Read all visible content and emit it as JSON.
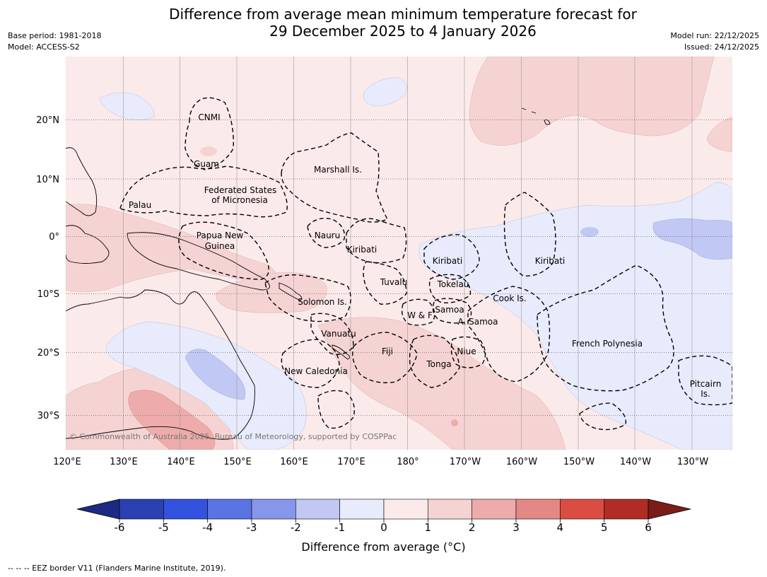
{
  "title": {
    "line1": "Difference from average mean minimum temperature forecast for",
    "line2": "29 December 2025 to 4 January 2026"
  },
  "meta": {
    "base_period": "Base period: 1981-2018",
    "model": "Model: ACCESS-S2",
    "model_run": "Model run: 22/12/2025",
    "issued": "Issued: 24/12/2025"
  },
  "axes": {
    "lon_labels": [
      "120°E",
      "130°E",
      "140°E",
      "150°E",
      "160°E",
      "170°E",
      "180°",
      "170°W",
      "160°W",
      "150°W",
      "140°W",
      "130°W"
    ],
    "lat_labels": [
      "20°N",
      "10°N",
      "0°",
      "10°S",
      "20°S",
      "30°S"
    ]
  },
  "regions": [
    "CNMI",
    "Guam",
    "Marshall Is.",
    "Federated States",
    "of Micronesia",
    "Palau",
    "Papua New",
    "Guinea",
    "Nauru",
    "Kiribati",
    "Kiribati",
    "Kiribati",
    "Tuvalu",
    "Tokelau",
    "Solomon Is.",
    "Samoa",
    "W & F",
    "A. Samoa",
    "Cook Is.",
    "Vanuatu",
    "Fiji",
    "Niue",
    "Tonga",
    "French Polynesia",
    "New Caledonia",
    "Pitcairn",
    "Is."
  ],
  "copyright": "© Commonwealth of Australia 2025, Bureau of Meteorology, supported by COSPPac",
  "colorbar": {
    "ticks": [
      "-6",
      "-5",
      "-4",
      "-3",
      "-2",
      "-1",
      "0",
      "1",
      "2",
      "3",
      "4",
      "5",
      "6"
    ],
    "colors": [
      "#1d2a84",
      "#2a40b3",
      "#3352dd",
      "#5a73e3",
      "#8696eb",
      "#c0c8f3",
      "#e8ebfb",
      "#fbeaea",
      "#f6d3d3",
      "#edacab",
      "#e48885",
      "#db4d43",
      "#b02c24",
      "#7a1d18"
    ],
    "label": "Difference from average (°C)"
  },
  "footnote": "--  --  -- EEZ border V11 (Flanders Marine Institute, 2019)."
}
